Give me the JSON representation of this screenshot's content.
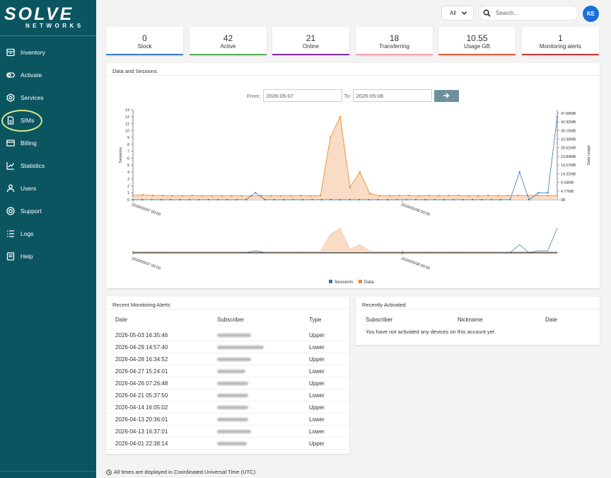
{
  "brand": {
    "name": "SOLVE",
    "sub": "NETWORKS"
  },
  "sidebar": {
    "items": [
      {
        "label": "Inventory",
        "icon": "inventory-icon"
      },
      {
        "label": "Activate",
        "icon": "activate-icon"
      },
      {
        "label": "Services",
        "icon": "services-icon"
      },
      {
        "label": "SIMs",
        "icon": "sim-icon"
      },
      {
        "label": "Billing",
        "icon": "billing-icon"
      },
      {
        "label": "Statistics",
        "icon": "statistics-icon"
      },
      {
        "label": "Users",
        "icon": "users-icon"
      },
      {
        "label": "Support",
        "icon": "support-icon"
      },
      {
        "label": "Logs",
        "icon": "logs-icon"
      },
      {
        "label": "Help",
        "icon": "help-icon"
      }
    ]
  },
  "topbar": {
    "filter_value": "All",
    "search_placeholder": "Search...",
    "avatar_initials": "KE"
  },
  "stats": [
    {
      "value": "0",
      "label": "Stock",
      "color": "#3d7ebf"
    },
    {
      "value": "42",
      "label": "Active",
      "color": "#58b05a"
    },
    {
      "value": "21",
      "label": "Online",
      "color": "#8a2f9e"
    },
    {
      "value": "18",
      "label": "Transferring",
      "color": "#f0a6aa"
    },
    {
      "value": "10.55",
      "label": "Usage GB",
      "color": "#e0613a"
    },
    {
      "value": "1",
      "label": "Monitoring alerts",
      "color": "#c8383e"
    }
  ],
  "sessions_panel": {
    "title": "Data and Sessions",
    "from_label": "From:",
    "from_value": "2026-05-07",
    "to_label": "To:",
    "to_value": "2026-05-08"
  },
  "chart_data": {
    "type": "line",
    "x_tick_labels": [
      "2026/05/07 00:00",
      "2026/05/08 00:00"
    ],
    "y_left_label": "Sessions",
    "y_right_label": "Data usage",
    "y_left_ticks": [
      "0",
      "1",
      "2",
      "3",
      "4",
      "5",
      "6",
      "7",
      "8",
      "9",
      "10",
      "11",
      "12",
      "13"
    ],
    "y_right_ticks": [
      "0B",
      "4.77MB",
      "9.54MB",
      "14.31MB",
      "19.07MB",
      "23.84MB",
      "28.61MB",
      "33.38MB",
      "38.15MB",
      "42.92MB",
      "47.68MB"
    ],
    "ylim_sessions": [
      0,
      13
    ],
    "series": [
      {
        "name": "Sessions",
        "color": "#3577b5",
        "values": [
          0,
          0,
          0,
          0,
          0,
          0,
          0,
          0,
          0,
          0,
          0,
          0,
          0,
          1,
          0,
          0,
          0,
          0,
          0,
          0,
          0,
          0,
          0,
          0,
          0,
          0,
          0,
          0,
          0,
          0,
          0,
          0,
          0,
          0,
          0,
          0,
          0,
          0,
          0,
          0,
          0,
          0,
          0,
          0,
          0,
          0,
          0,
          0,
          0,
          0,
          0,
          0,
          0,
          0,
          0,
          0,
          0,
          0,
          0,
          0,
          0,
          0,
          0,
          0,
          0,
          0,
          0,
          0,
          0,
          0,
          0,
          0,
          0,
          0,
          0,
          0,
          0,
          0,
          0,
          0,
          0,
          0,
          0,
          0,
          0,
          0,
          0,
          0,
          0,
          0,
          0,
          0,
          0,
          0,
          0,
          0,
          0,
          0,
          0,
          0,
          0,
          0,
          0,
          0,
          0,
          0,
          0,
          0,
          0,
          0,
          0,
          0,
          0,
          0,
          0,
          0,
          0,
          0,
          0,
          0,
          0,
          0,
          0,
          0,
          0,
          4,
          0,
          0,
          1,
          1,
          0,
          12
        ]
      },
      {
        "name": "Data",
        "color": "#f28c28",
        "fill": "#f7d8c2",
        "values": [
          0.6,
          0.7,
          0.6,
          0.6,
          0.6,
          0.55,
          0.55,
          0.6,
          0.55,
          0.55,
          0.55,
          0.55,
          0.55,
          0.55,
          0.55,
          0.55,
          0.6,
          0.55,
          0.55,
          0.55,
          0.6,
          0.55,
          0.55,
          0.55,
          0.6,
          0.55,
          0.55,
          0.55,
          0.55,
          0.55,
          0.55,
          0.55,
          0.55,
          0.55,
          0.55,
          0.6,
          0.55,
          0.55,
          0.55,
          0.55,
          0.55,
          0.55,
          0.6,
          0.6,
          0.6,
          0.6,
          0.6,
          0.6,
          0.6,
          0.6,
          0.6,
          0.6,
          0.6,
          0.6,
          0.6,
          0.6,
          0.6,
          0.6,
          0.6,
          0.6,
          0.6,
          0.6,
          0.6,
          0.6,
          0.6,
          0.6,
          0.6,
          0.6,
          0.6,
          0.6,
          0.6,
          0.6,
          0.6,
          0.6,
          0.6,
          0.6,
          0.6,
          0.6,
          0.6,
          0.6,
          0.6,
          0.6,
          0.6,
          0.6,
          0.6,
          0.6,
          0.6,
          0.6,
          0.6,
          0.6,
          0.6,
          0.6,
          0.6,
          0.6,
          0.6,
          0.6,
          0.6,
          0.6,
          0.6,
          0.6,
          0.6,
          0.6,
          0.6,
          0.6,
          0.6,
          0.6,
          0.6,
          0.6,
          0.6,
          0.6,
          0.6,
          0.6,
          0.6,
          0.6,
          0.6,
          0.6,
          0.6,
          0.6,
          0.6,
          0.6,
          0.6,
          0.6,
          0.6,
          0.6,
          0.6,
          0.6,
          0.6,
          0.6,
          0.6,
          0.6,
          0.6,
          0.6
        ]
      }
    ],
    "data_points": [
      0.6,
      0.7,
      0.6,
      0.6,
      0.55,
      0.55,
      0.6,
      0.55,
      0.55,
      0.55,
      0.55,
      0.55,
      0.55,
      0.6,
      0.55,
      0.55,
      0.55,
      0.6,
      0.55,
      0.6,
      9,
      12,
      1.8,
      4,
      0.9,
      0.55,
      0.55,
      0.6,
      0.6,
      0.55,
      0.6,
      0.55,
      0.6,
      0.6,
      0.55,
      0.55,
      0.6,
      0.55,
      0.6,
      0.6,
      0.6,
      0.6,
      0.6,
      0.6
    ],
    "session_points": [
      0,
      0,
      0,
      0,
      0,
      0,
      0,
      0,
      0,
      0,
      0,
      0,
      0,
      1,
      0,
      0,
      0,
      0,
      0,
      0,
      0,
      0,
      0,
      0,
      0,
      0,
      0,
      0,
      0,
      0,
      0,
      0,
      0,
      0,
      0,
      0,
      0,
      0,
      0,
      0,
      0,
      4,
      0,
      1,
      1,
      12
    ],
    "legend": [
      {
        "name": "Sessions",
        "color": "#3577b5"
      },
      {
        "name": "Data",
        "color": "#f28c28"
      }
    ]
  },
  "alerts_panel": {
    "title": "Recent Monitoring Alerts",
    "columns": [
      "Date",
      "Subscriber",
      "Type"
    ],
    "rows": [
      {
        "date": "2026-05-03 16:35:46",
        "type": "Upper"
      },
      {
        "date": "2026-04-29 14:57:40",
        "type": "Lower"
      },
      {
        "date": "2026-04-28 16:34:52",
        "type": "Upper"
      },
      {
        "date": "2026-04-27 15:24:01",
        "type": "Lower"
      },
      {
        "date": "2026-04-26 07:26:48",
        "type": "Upper"
      },
      {
        "date": "2026-04-21 05:37:50",
        "type": "Lower"
      },
      {
        "date": "2026-04-14 16:05:02",
        "type": "Upper"
      },
      {
        "date": "2026-04-13 20:36:01",
        "type": "Lower"
      },
      {
        "date": "2026-04-13 16:37:01",
        "type": "Lower"
      },
      {
        "date": "2026-04-01 22:38:14",
        "type": "Upper"
      }
    ]
  },
  "activated_panel": {
    "title": "Recently Activated",
    "columns": [
      "Subscriber",
      "Nickname",
      "Date"
    ],
    "empty_text": "You have not activated any devices on this account yet."
  },
  "footer": {
    "text": "All times are displayed in Coordinated Universal Time (UTC)"
  }
}
